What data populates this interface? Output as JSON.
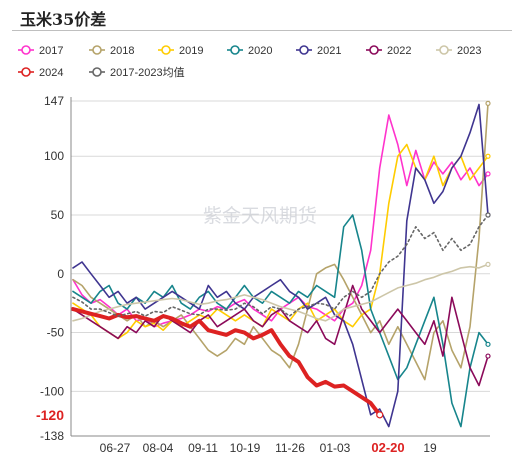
{
  "chart_data": {
    "type": "line",
    "title": "玉米35价差",
    "watermark": "紫金天风期货",
    "ylim": [
      -138,
      147
    ],
    "yticks": [
      147,
      100,
      50,
      0,
      -50,
      -100,
      -138
    ],
    "ytick_labels": [
      "147",
      "100",
      "50",
      "0",
      "-50",
      "-100",
      "-138"
    ],
    "xtick_labels": [
      "06-27",
      "08-04",
      "09-11",
      "10-19",
      "11-26",
      "01-03",
      "02-20",
      "19"
    ],
    "xtick_highlight_index": 6,
    "current_value": -120,
    "current_value_label": "-120",
    "grid": true,
    "legend_position": "top",
    "series": [
      {
        "name": "2017",
        "color": "#ff33cc",
        "values": [
          -5,
          -18,
          -25,
          -22,
          -28,
          -35,
          -30,
          -40,
          -38,
          -45,
          -42,
          -40,
          -38,
          -35,
          -30,
          -32,
          -28,
          -30,
          -25,
          -22,
          -30,
          -35,
          -40,
          -30,
          -25,
          -20,
          -28,
          -30,
          -35,
          -40,
          -30,
          -25,
          -10,
          20,
          90,
          135,
          110,
          75,
          105,
          80,
          95,
          85,
          95,
          80,
          90,
          75,
          85
        ]
      },
      {
        "name": "2018",
        "color": "#b5a36a",
        "values": [
          -5,
          -10,
          -20,
          -25,
          -30,
          -35,
          -40,
          -35,
          -45,
          -40,
          -45,
          -40,
          -35,
          -45,
          -55,
          -65,
          -70,
          -65,
          -55,
          -60,
          -45,
          -55,
          -65,
          -70,
          -80,
          -60,
          -30,
          0,
          5,
          8,
          -5,
          -20,
          -35,
          -50,
          -40,
          -60,
          -45,
          -60,
          -75,
          -90,
          -50,
          -40,
          -65,
          -80,
          -45,
          30,
          145
        ]
      },
      {
        "name": "2019",
        "color": "#ffcc00",
        "values": [
          -25,
          -30,
          -35,
          -45,
          -50,
          -55,
          -50,
          -40,
          -45,
          -42,
          -48,
          -40,
          -45,
          -40,
          -35,
          -38,
          -30,
          -35,
          -40,
          -35,
          -40,
          -45,
          -30,
          -35,
          -40,
          -30,
          -25,
          -40,
          -35,
          -30,
          -40,
          -45,
          -35,
          -30,
          0,
          60,
          100,
          110,
          90,
          80,
          100,
          75,
          90,
          100,
          80,
          90,
          100
        ]
      },
      {
        "name": "2020",
        "color": "#17858c",
        "values": [
          -15,
          -20,
          -25,
          -15,
          -10,
          -25,
          -30,
          -20,
          -25,
          -15,
          -20,
          -10,
          -25,
          -30,
          -20,
          -15,
          -25,
          -30,
          -20,
          -10,
          -20,
          -25,
          -15,
          -20,
          -25,
          -15,
          -20,
          -10,
          -15,
          -20,
          40,
          50,
          20,
          -30,
          -50,
          -70,
          -90,
          -80,
          -60,
          -40,
          -20,
          -60,
          -110,
          -130,
          -80,
          -50,
          -60
        ]
      },
      {
        "name": "2021",
        "color": "#3f3590",
        "values": [
          5,
          10,
          0,
          -10,
          -20,
          -15,
          -25,
          -20,
          -30,
          -25,
          -20,
          -15,
          -20,
          -25,
          -30,
          -10,
          -20,
          -15,
          -25,
          -30,
          -20,
          -15,
          -10,
          -5,
          -15,
          -20,
          -30,
          -25,
          -20,
          -35,
          -40,
          -60,
          -90,
          -120,
          -115,
          -130,
          -100,
          45,
          90,
          80,
          60,
          70,
          90,
          100,
          120,
          144,
          50
        ]
      },
      {
        "name": "2022",
        "color": "#8b0a5a",
        "values": [
          -30,
          -35,
          -40,
          -45,
          -50,
          -55,
          -45,
          -50,
          -40,
          -45,
          -35,
          -40,
          -45,
          -50,
          -40,
          -35,
          -45,
          -40,
          -35,
          -30,
          -40,
          -45,
          -35,
          -30,
          -40,
          -45,
          -50,
          -40,
          -55,
          -60,
          -35,
          -10,
          -30,
          -40,
          -50,
          -40,
          -30,
          -40,
          -50,
          -60,
          -40,
          -70,
          -20,
          -50,
          -80,
          -95,
          -70
        ]
      },
      {
        "name": "2023",
        "color": "#cdc6a8",
        "values": [
          -40,
          -38,
          -35,
          -32,
          -30,
          -28,
          -26,
          -25,
          -24,
          -23,
          -22,
          -21,
          -22,
          -24,
          -26,
          -25,
          -23,
          -22,
          -20,
          -18,
          -20,
          -22,
          -25,
          -28,
          -30,
          -32,
          -35,
          -38,
          -40,
          -36,
          -30,
          -28,
          -26,
          -24,
          -20,
          -16,
          -12,
          -10,
          -8,
          -5,
          -3,
          0,
          2,
          5,
          6,
          5,
          8
        ]
      },
      {
        "name": "2024",
        "color": "#dd2222",
        "values": [
          -30,
          -32,
          -34,
          -36,
          -38,
          -35,
          -37,
          -36,
          -38,
          -40,
          -36,
          -38,
          -42,
          -45,
          -40,
          -48,
          -50,
          -52,
          -48,
          -50,
          -55,
          -52,
          -48,
          -60,
          -70,
          -75,
          -88,
          -95,
          -92,
          -96,
          -95,
          -100,
          -105,
          -110,
          -120
        ]
      },
      {
        "name": "2017-2023均值",
        "color": "#666666",
        "values": [
          -20,
          -24,
          -30,
          -30,
          -33,
          -36,
          -34,
          -32,
          -36,
          -32,
          -33,
          -28,
          -31,
          -34,
          -35,
          -30,
          -30,
          -31,
          -30,
          -25,
          -28,
          -34,
          -28,
          -30,
          -36,
          -30,
          -28,
          -25,
          -26,
          -30,
          -20,
          -15,
          -20,
          -15,
          0,
          10,
          15,
          25,
          40,
          30,
          35,
          20,
          30,
          20,
          25,
          40,
          50
        ]
      }
    ]
  }
}
